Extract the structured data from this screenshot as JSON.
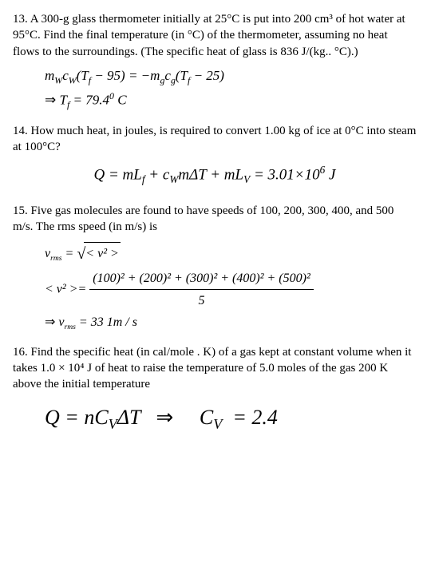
{
  "p13": {
    "text": "A 300-g glass thermometer initially at 25°C is put into 200 cm³ of hot water at 95°C. Find the final temperature (in °C) of the thermometer, assuming no heat flows to the surroundings. (The specific heat of glass is 836 J/(kg.. °C).)",
    "eq1_lhs": "m",
    "eq1_sub1": "W",
    "eq1_c": "c",
    "eq1_sub2": "W",
    "eq1_paren1": "(T",
    "eq1_subf": "f",
    "eq1_minus95": " − 95) = −",
    "eq1_m2": "m",
    "eq1_subg": "g",
    "eq1_c2": "c",
    "eq1_subg2": "g",
    "eq1_paren2": "(T",
    "eq1_subf2": "f",
    "eq1_minus25": " − 25)",
    "eq2_arrow": "⇒ ",
    "eq2_T": "T",
    "eq2_subf": "f",
    "eq2_result": " = 79.4",
    "eq2_sup0": "0",
    "eq2_C": " C"
  },
  "p14": {
    "text": "How much heat, in joules, is required to convert 1.00 kg of ice at 0°C into steam at 100°C?",
    "eq_Q": "Q = mL",
    "eq_subf": "f",
    "eq_plus1": " + c",
    "eq_subW": "W",
    "eq_mdt": "mΔT + mL",
    "eq_subV": "V",
    "eq_result": " = 3.01×10",
    "eq_sup6": "6",
    "eq_J": " J"
  },
  "p15": {
    "text": "Five gas molecules are found to have speeds of 100, 200, 300, 400, and 500 m/s. The rms speed (in m/s) is",
    "line1_v": "v",
    "line1_rms": "rms",
    "line1_eq": " = ",
    "line1_sqrt_content": "< v² >",
    "line2_lhs": "< v² >=",
    "line2_num": "(100)² + (200)² + (300)² + (400)² + (500)²",
    "line2_den": "5",
    "line3_arrow": "⇒ ",
    "line3_v": "v",
    "line3_rms": "rms",
    "line3_result": " = 33 1m / s"
  },
  "p16": {
    "text": "Find the specific heat (in cal/mole . K) of a gas kept at constant volume when it takes 1.0 × 10⁴ J of heat to raise the temperature of 5.0 moles of the gas 200 K above the initial temperature",
    "eq_Q": "Q = nC",
    "eq_subV": "V",
    "eq_dt": "ΔT ",
    "eq_arrow": "⇒",
    "eq_C": "C",
    "eq_subV2": "V",
    "eq_result": "= 2.4"
  }
}
